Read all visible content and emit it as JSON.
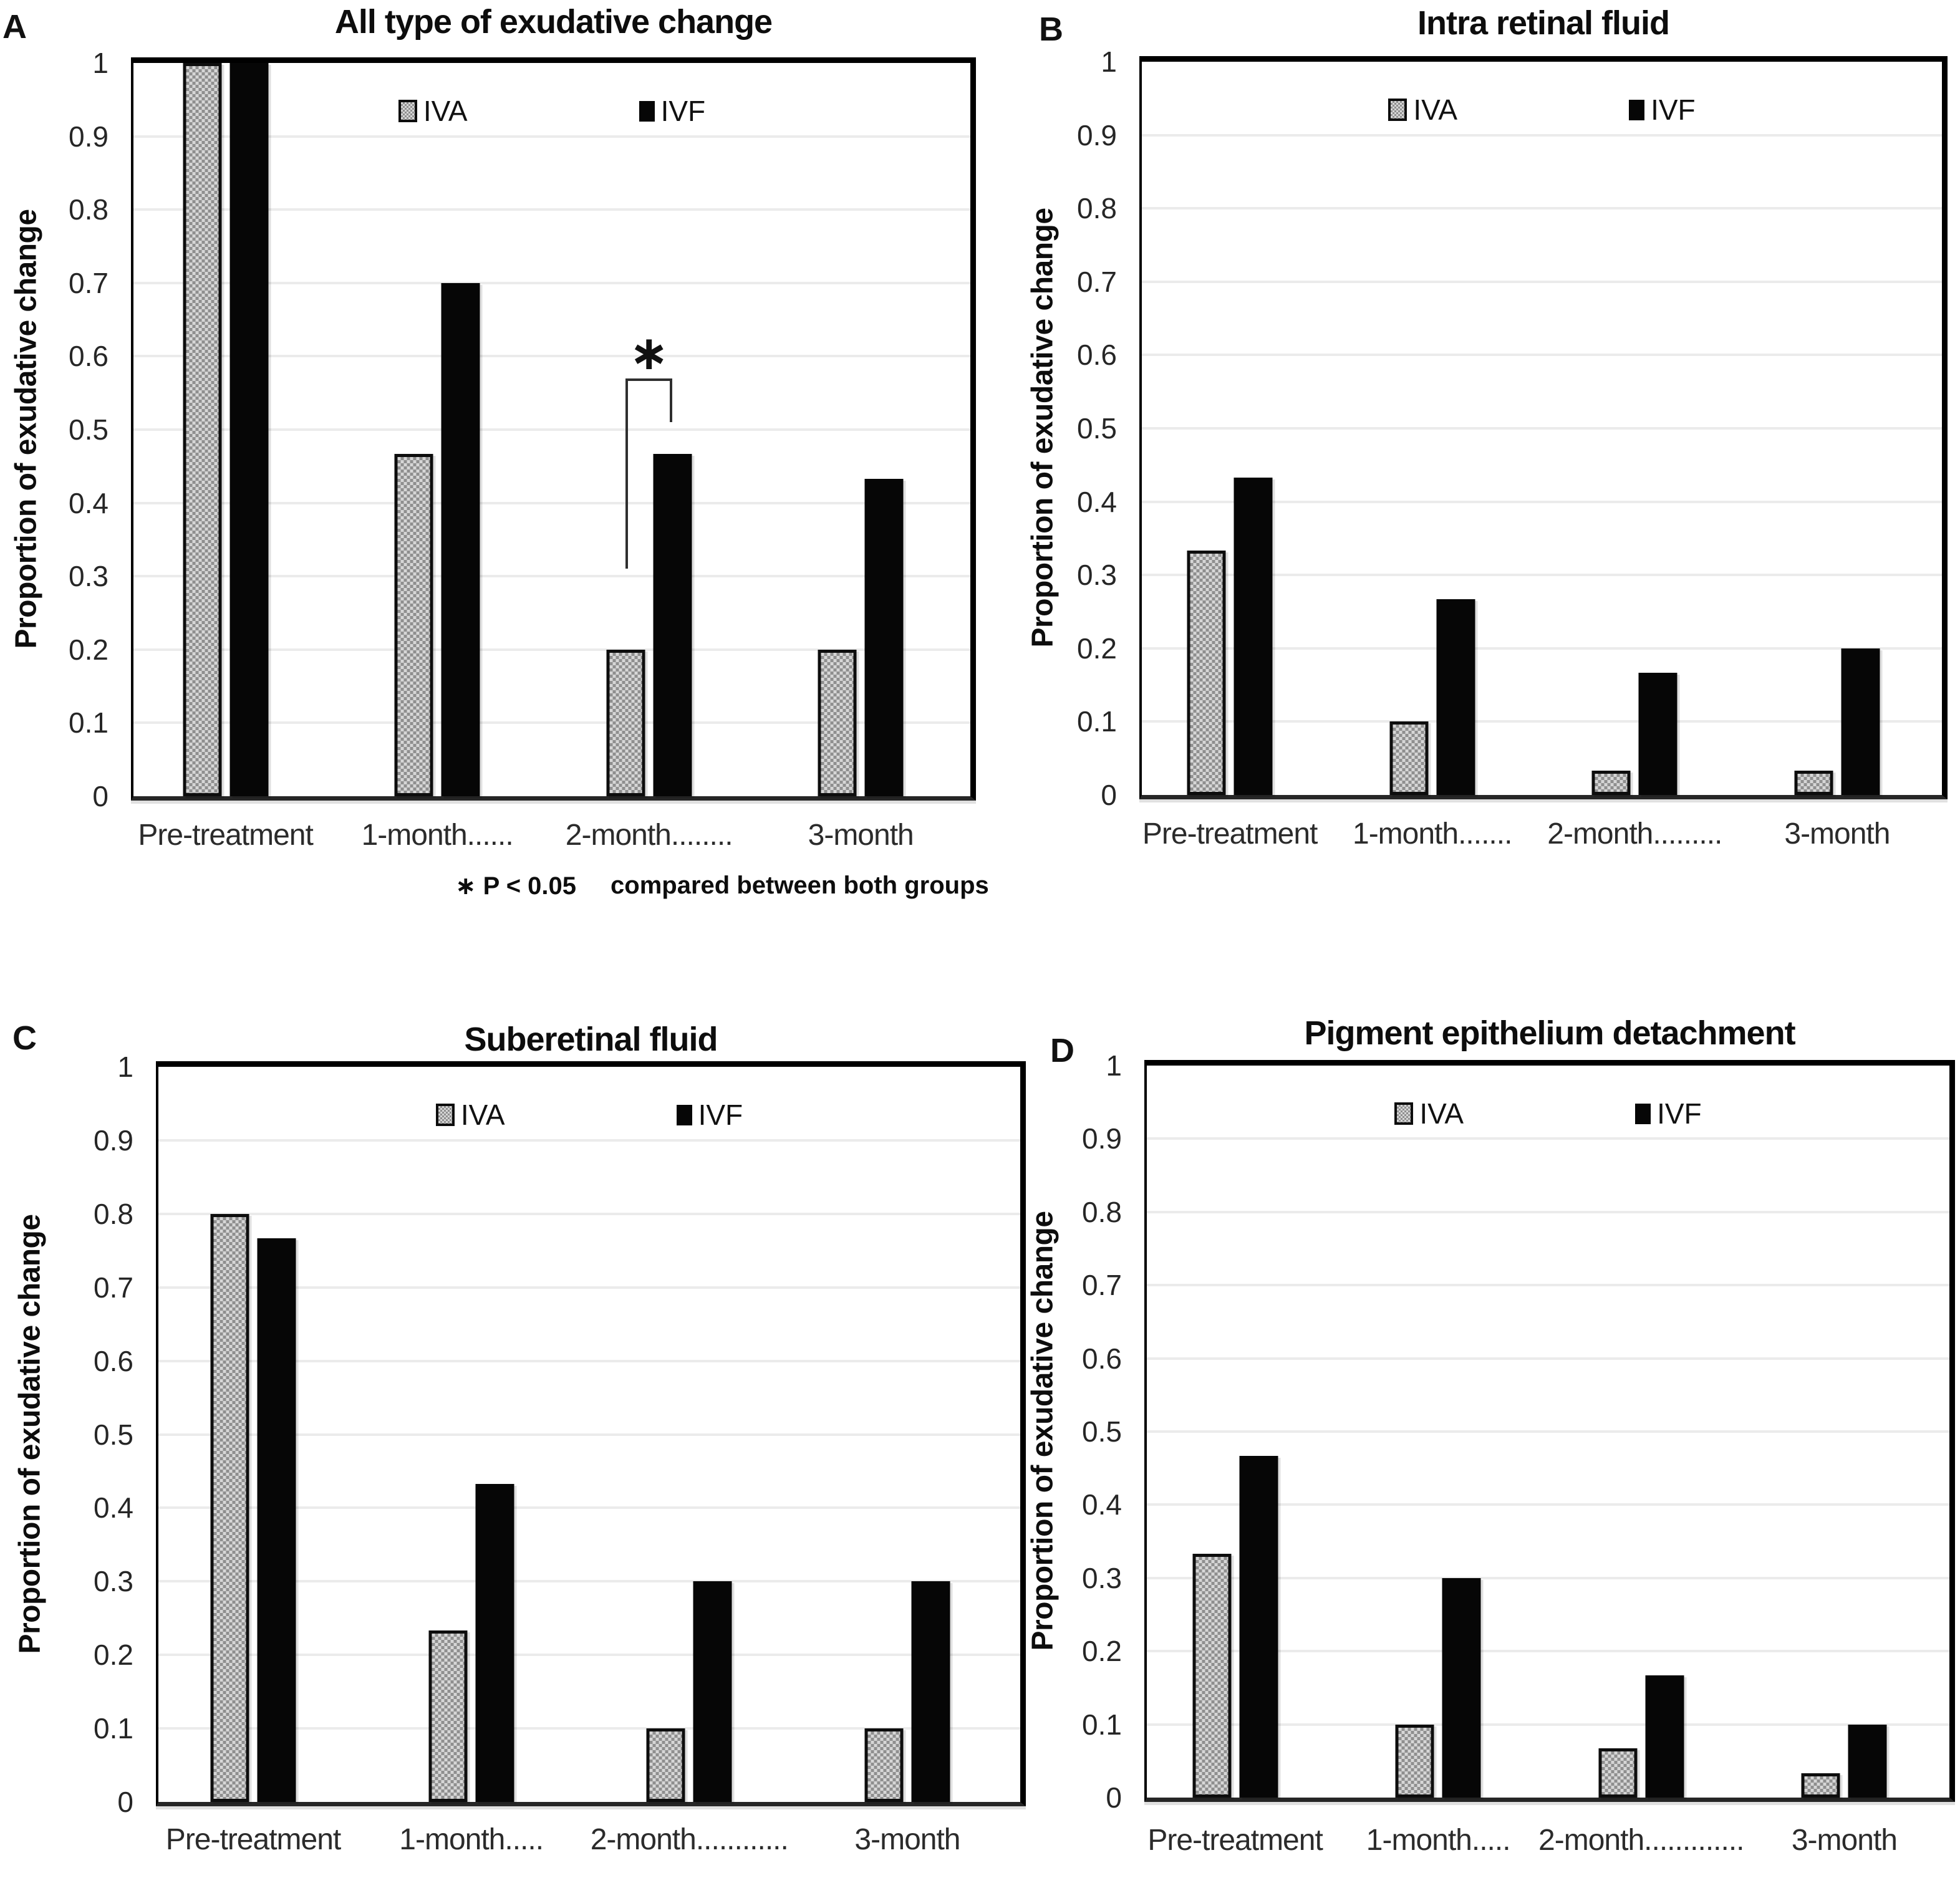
{
  "figure": {
    "background": "#ffffff",
    "colors": {
      "ivf_fill": "#060606",
      "iva_pattern_dark": "#8f8f8f",
      "iva_pattern_light": "#d6d6d6",
      "gridline": "#ebebeb",
      "frame": "#000000"
    }
  },
  "y_axis": {
    "label": "Proportion of exudative change",
    "ticks": [
      "1",
      "0.9",
      "0.8",
      "0.7",
      "0.6",
      "0.5",
      "0.4",
      "0.3",
      "0.2",
      "0.1",
      "0"
    ],
    "min": 0,
    "max": 1,
    "step": 0.1
  },
  "chart_data": [
    {
      "type": "bar",
      "panel_letter": "A",
      "title": "All type of exudative change",
      "categories": [
        "Pre-treatment",
        "1-month......",
        "2-month........",
        "3-month"
      ],
      "series": [
        {
          "name": "IVA",
          "values": [
            1.0,
            0.467,
            0.2,
            0.2
          ]
        },
        {
          "name": "IVF",
          "values": [
            1.0,
            0.7,
            0.467,
            0.433
          ]
        }
      ],
      "ylabel": "Proportion of exudative change",
      "ylim": [
        0,
        1
      ],
      "grid": true,
      "legend_position": "top-center-inside",
      "annotation": {
        "type": "significance-bracket",
        "category_index": 2,
        "label": "∗",
        "top_value": 0.57,
        "left_drop_value": 0.31,
        "right_drop_value": 0.51
      },
      "footnote": {
        "significance": "∗ P < 0.05",
        "note": "compared between both groups"
      }
    },
    {
      "type": "bar",
      "panel_letter": "B",
      "title": "Intra retinal fluid",
      "categories": [
        "Pre-treatment",
        "1-month.......",
        "2-month.........",
        "3-month"
      ],
      "series": [
        {
          "name": "IVA",
          "values": [
            0.333,
            0.1,
            0.033,
            0.033
          ]
        },
        {
          "name": "IVF",
          "values": [
            0.433,
            0.267,
            0.167,
            0.2
          ]
        }
      ],
      "ylabel": "Proportion of exudative change",
      "ylim": [
        0,
        1
      ],
      "grid": true,
      "legend_position": "top-center-inside"
    },
    {
      "type": "bar",
      "panel_letter": "C",
      "title": "Suberetinal fluid",
      "categories": [
        "Pre-treatment",
        "1-month.....",
        "2-month............",
        "3-month"
      ],
      "series": [
        {
          "name": "IVA",
          "values": [
            0.8,
            0.233,
            0.1,
            0.1
          ]
        },
        {
          "name": "IVF",
          "values": [
            0.767,
            0.433,
            0.3,
            0.3
          ]
        }
      ],
      "ylabel": "Proportion of exudative change",
      "ylim": [
        0,
        1
      ],
      "grid": true,
      "legend_position": "top-center-inside"
    },
    {
      "type": "bar",
      "panel_letter": "D",
      "title": "Pigment epithelium detachment",
      "categories": [
        "Pre-treatment",
        "1-month.....",
        "2-month.............",
        "3-month"
      ],
      "series": [
        {
          "name": "IVA",
          "values": [
            0.333,
            0.1,
            0.067,
            0.033
          ]
        },
        {
          "name": "IVF",
          "values": [
            0.467,
            0.3,
            0.167,
            0.1
          ]
        }
      ],
      "ylabel": "Proportion of exudative change",
      "ylim": [
        0,
        1
      ],
      "grid": true,
      "legend_position": "top-center-inside"
    }
  ]
}
